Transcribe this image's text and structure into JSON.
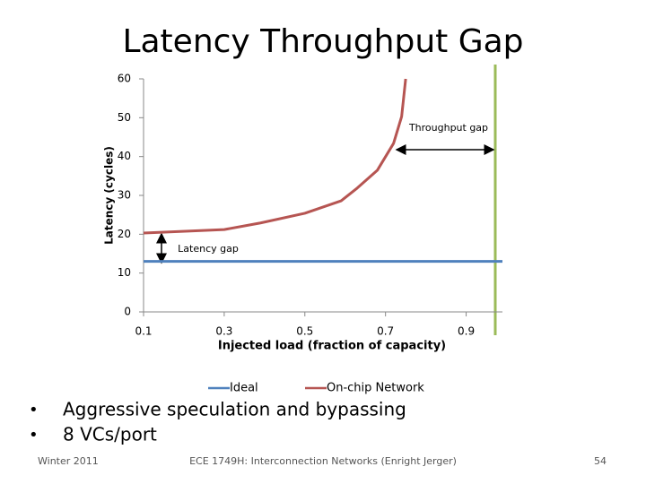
{
  "header": {
    "title": "Latency Throughput Gap"
  },
  "chart_data": {
    "type": "line",
    "x_label": "Injected load (fraction of capacity)",
    "y_label": "Latency (cycles)",
    "annotations": [
      "Throughput gap",
      "Latency gap"
    ],
    "xlim": [
      0.1,
      0.99
    ],
    "xticks": [
      0.1,
      0.3,
      0.5,
      0.7,
      0.9
    ],
    "ylim": [
      0,
      60
    ],
    "yticks": [
      0,
      10,
      20,
      30,
      40,
      50,
      60
    ],
    "grid": false,
    "legend": "bottom",
    "series": [
      {
        "name": "Ideal",
        "color": "#4f81bd",
        "x": [
          0.1,
          0.99
        ],
        "values": [
          13,
          13
        ]
      },
      {
        "name": "On-chip Network",
        "color": "#b65552",
        "x": [
          0.1,
          0.3,
          0.39,
          0.5,
          0.59,
          0.63,
          0.68,
          0.72,
          0.74,
          0.75
        ],
        "values": [
          20.3,
          21.2,
          22.9,
          25.4,
          28.6,
          31.9,
          36.5,
          43.4,
          50.3,
          60
        ]
      }
    ]
  },
  "bullets": [
    "Aggressive speculation and bypassing",
    "8 VCs/port"
  ],
  "footer": {
    "left": "Winter 2011",
    "center": "ECE 1749H: Interconnection Networks (Enright Jerger)",
    "page": "54"
  }
}
